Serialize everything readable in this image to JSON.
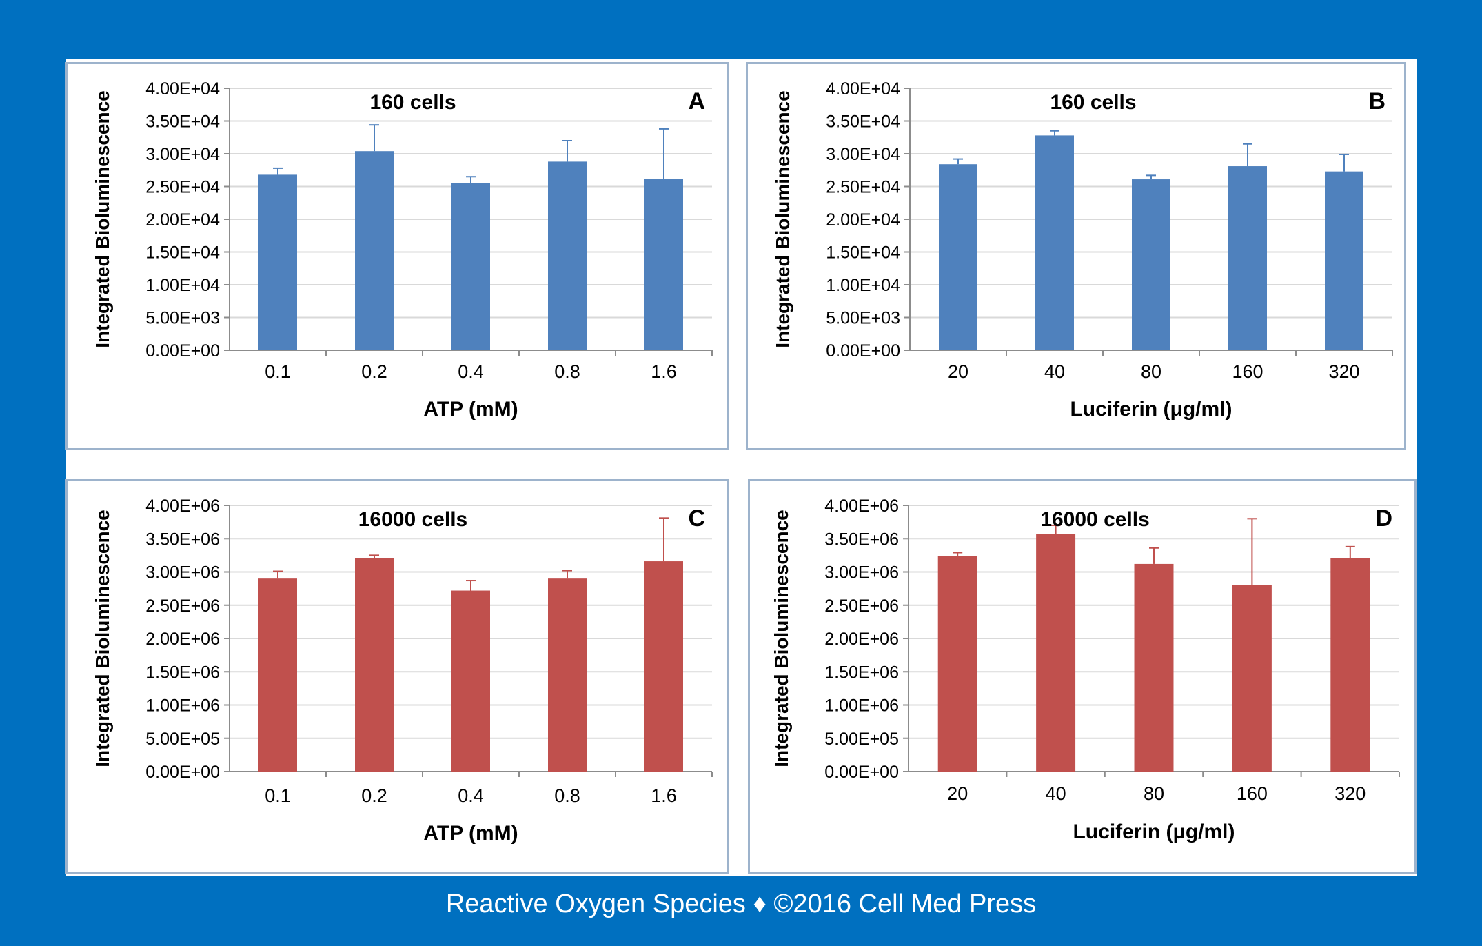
{
  "footer": {
    "journal": "Reactive Oxygen Species",
    "separator": "♦",
    "copyright": "©2016 Cell Med Press"
  },
  "colors": {
    "frame": "#0070c0",
    "blue_bar": "#4f81bd",
    "red_bar": "#c0504d",
    "grid": "#d9d9d9",
    "axis": "#8c8c8c"
  },
  "chart_data": [
    {
      "panel": "A",
      "type": "bar",
      "title": "160 cells",
      "xlabel": "ATP (mM)",
      "ylabel": "Integrated Bioluminescence",
      "categories": [
        "0.1",
        "0.2",
        "0.4",
        "0.8",
        "1.6"
      ],
      "values": [
        26800,
        30400,
        25500,
        28800,
        26200
      ],
      "errors": [
        1000,
        4000,
        1000,
        3200,
        7600
      ],
      "ylim": [
        0,
        40000
      ],
      "yticks": [
        "0.00E+00",
        "5.00E+03",
        "1.00E+04",
        "1.50E+04",
        "2.00E+04",
        "2.50E+04",
        "3.00E+04",
        "3.50E+04",
        "4.00E+04"
      ],
      "color": "#4f81bd",
      "grid": true
    },
    {
      "panel": "B",
      "type": "bar",
      "title": "160 cells",
      "xlabel": "Luciferin (μg/ml)",
      "ylabel": "Integrated Bioluminescence",
      "categories": [
        "20",
        "40",
        "80",
        "160",
        "320"
      ],
      "values": [
        28400,
        32800,
        26100,
        28100,
        27300
      ],
      "errors": [
        800,
        700,
        600,
        3400,
        2600
      ],
      "ylim": [
        0,
        40000
      ],
      "yticks": [
        "0.00E+00",
        "5.00E+03",
        "1.00E+04",
        "1.50E+04",
        "2.00E+04",
        "2.50E+04",
        "3.00E+04",
        "3.50E+04",
        "4.00E+04"
      ],
      "color": "#4f81bd",
      "grid": true
    },
    {
      "panel": "C",
      "type": "bar",
      "title": "16000 cells",
      "xlabel": "ATP (mM)",
      "ylabel": "Integrated Bioluminescence",
      "categories": [
        "0.1",
        "0.2",
        "0.4",
        "0.8",
        "1.6"
      ],
      "values": [
        2900000,
        3210000,
        2720000,
        2900000,
        3160000
      ],
      "errors": [
        110000,
        40000,
        150000,
        120000,
        650000
      ],
      "ylim": [
        0,
        4000000
      ],
      "yticks": [
        "0.00E+00",
        "5.00E+05",
        "1.00E+06",
        "1.50E+06",
        "2.00E+06",
        "2.50E+06",
        "3.00E+06",
        "3.50E+06",
        "4.00E+06"
      ],
      "color": "#c0504d",
      "grid": true
    },
    {
      "panel": "D",
      "type": "bar",
      "title": "16000 cells",
      "xlabel": "Luciferin (μg/ml)",
      "ylabel": "Integrated Bioluminescence",
      "categories": [
        "20",
        "40",
        "80",
        "160",
        "320"
      ],
      "values": [
        3240000,
        3570000,
        3120000,
        2800000,
        3210000
      ],
      "errors": [
        50000,
        130000,
        240000,
        1000000,
        170000
      ],
      "ylim": [
        0,
        4000000
      ],
      "yticks": [
        "0.00E+00",
        "5.00E+05",
        "1.00E+06",
        "1.50E+06",
        "2.00E+06",
        "2.50E+06",
        "3.00E+06",
        "3.50E+06",
        "4.00E+06"
      ],
      "color": "#c0504d",
      "grid": true
    }
  ]
}
